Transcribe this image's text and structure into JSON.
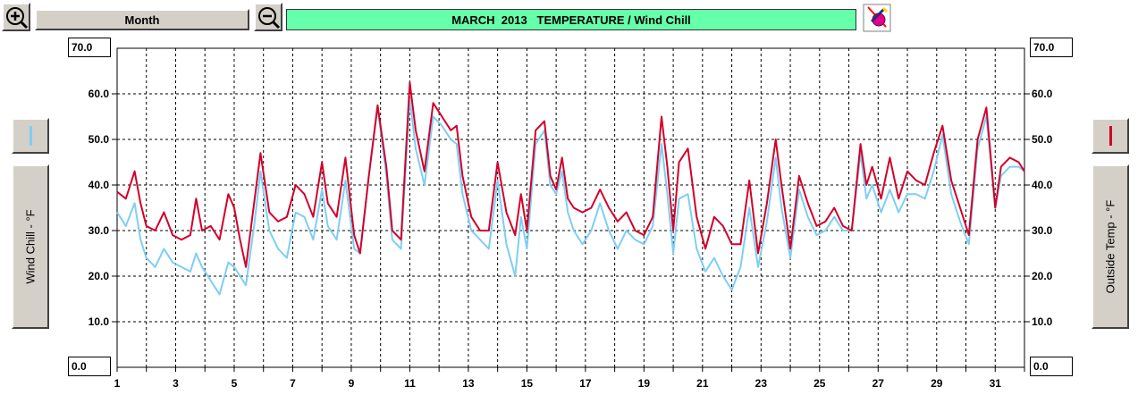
{
  "toolbar": {
    "zoom_in_icon": "zoom-in-magnifier",
    "zoom_out_icon": "zoom-out-magnifier",
    "range_label": "Month",
    "title": "MARCH  2013   TEMPERATURE / Wind Chill",
    "print_icon": "print-pen-icon"
  },
  "left_axis": {
    "title": "Wind Chill - °F",
    "max_box": "70.0",
    "min_box": "0.0",
    "color": "#7ecef4"
  },
  "right_axis": {
    "title": "Outside Temp - °F",
    "max_box": "70.0",
    "min_box": "0.0",
    "color": "#d2002a"
  },
  "chart_data": {
    "type": "line",
    "title": "MARCH  2013   TEMPERATURE / Wind Chill",
    "ylim": [
      0,
      70
    ],
    "xlim": [
      1,
      32
    ],
    "yticks": [
      "10.0",
      "20.0",
      "30.0",
      "40.0",
      "50.0",
      "60.0"
    ],
    "xticks": [
      "1",
      "3",
      "5",
      "7",
      "9",
      "11",
      "13",
      "15",
      "17",
      "19",
      "21",
      "23",
      "25",
      "27",
      "29",
      "31"
    ],
    "grid": true,
    "series": [
      {
        "name": "Outside Temp - °F",
        "color": "#d2002a",
        "x": [
          1,
          1.3,
          1.6,
          1.8,
          2.0,
          2.3,
          2.6,
          2.9,
          3.2,
          3.5,
          3.7,
          3.9,
          4.2,
          4.5,
          4.8,
          5.0,
          5.2,
          5.4,
          5.7,
          5.9,
          6.2,
          6.5,
          6.8,
          7.1,
          7.4,
          7.7,
          8.0,
          8.2,
          8.5,
          8.8,
          9.1,
          9.3,
          9.6,
          9.9,
          10.2,
          10.4,
          10.7,
          11.0,
          11.2,
          11.5,
          11.8,
          12.1,
          12.4,
          12.6,
          12.8,
          13.1,
          13.4,
          13.7,
          14.0,
          14.3,
          14.6,
          14.8,
          15.0,
          15.3,
          15.6,
          15.8,
          16.0,
          16.2,
          16.4,
          16.6,
          16.9,
          17.2,
          17.5,
          17.8,
          18.1,
          18.4,
          18.7,
          19.0,
          19.3,
          19.6,
          19.8,
          20.0,
          20.2,
          20.5,
          20.8,
          21.1,
          21.4,
          21.7,
          22.0,
          22.3,
          22.6,
          22.9,
          23.2,
          23.5,
          23.7,
          24.0,
          24.3,
          24.6,
          24.9,
          25.2,
          25.5,
          25.8,
          26.1,
          26.4,
          26.6,
          26.8,
          27.1,
          27.4,
          27.7,
          28.0,
          28.3,
          28.6,
          28.9,
          29.2,
          29.5,
          29.8,
          30.1,
          30.4,
          30.7,
          31.0,
          31.2,
          31.5,
          31.8,
          32.0
        ],
        "y": [
          38.5,
          37,
          43,
          36,
          31,
          30,
          34,
          29,
          28,
          29,
          37,
          30,
          31,
          28,
          38,
          35,
          28,
          22,
          37,
          47,
          34,
          32,
          33,
          40,
          38,
          33,
          45,
          36,
          33,
          46,
          29,
          25,
          42,
          57.5,
          44,
          30,
          28,
          62.5,
          52,
          43,
          58,
          55,
          52,
          53,
          42,
          33,
          30,
          30,
          45,
          34,
          29,
          38,
          30,
          52,
          54,
          42,
          39,
          46,
          37,
          35,
          34,
          35,
          39,
          35,
          32,
          34,
          30,
          29,
          33,
          55,
          44,
          30,
          45,
          48,
          33,
          26,
          33,
          31,
          27,
          27,
          41,
          25,
          36,
          50,
          40,
          26,
          42,
          36,
          31,
          32,
          35,
          31,
          30,
          49,
          40,
          44,
          37,
          46,
          37,
          43,
          41,
          40,
          47,
          53,
          41,
          35,
          29,
          50,
          57,
          35,
          44,
          46,
          45,
          43
        ]
      },
      {
        "name": "Wind Chill - °F",
        "color": "#7ecef4",
        "x": [
          1,
          1.3,
          1.6,
          1.8,
          2.0,
          2.3,
          2.6,
          2.9,
          3.2,
          3.5,
          3.7,
          3.9,
          4.2,
          4.5,
          4.8,
          5.0,
          5.2,
          5.4,
          5.7,
          5.9,
          6.2,
          6.5,
          6.8,
          7.1,
          7.4,
          7.7,
          8.0,
          8.2,
          8.5,
          8.8,
          9.1,
          9.3,
          9.6,
          9.9,
          10.2,
          10.4,
          10.7,
          11.0,
          11.2,
          11.5,
          11.8,
          12.1,
          12.4,
          12.6,
          12.8,
          13.1,
          13.4,
          13.7,
          14.0,
          14.3,
          14.6,
          14.8,
          15.0,
          15.3,
          15.6,
          15.8,
          16.0,
          16.2,
          16.4,
          16.6,
          16.9,
          17.2,
          17.5,
          17.8,
          18.1,
          18.4,
          18.7,
          19.0,
          19.3,
          19.6,
          19.8,
          20.0,
          20.2,
          20.5,
          20.8,
          21.1,
          21.4,
          21.7,
          22.0,
          22.3,
          22.6,
          22.9,
          23.2,
          23.5,
          23.7,
          24.0,
          24.3,
          24.6,
          24.9,
          25.2,
          25.5,
          25.8,
          26.1,
          26.4,
          26.6,
          26.8,
          27.1,
          27.4,
          27.7,
          28.0,
          28.3,
          28.6,
          28.9,
          29.2,
          29.5,
          29.8,
          30.1,
          30.4,
          30.7,
          31.0,
          31.2,
          31.5,
          31.8,
          32.0
        ],
        "y": [
          34,
          31,
          36,
          28,
          24,
          22,
          26,
          23,
          22,
          21,
          25,
          22,
          19,
          16,
          23,
          22,
          20,
          18,
          32,
          43,
          30,
          26,
          24,
          34,
          33,
          28,
          39,
          31,
          28,
          41,
          26,
          25,
          42,
          57,
          42,
          28,
          26,
          59,
          48,
          40,
          55,
          53,
          50,
          49,
          38,
          30,
          28,
          26,
          41,
          27,
          20,
          33,
          26,
          49,
          52,
          40,
          38,
          43,
          34,
          30,
          27,
          30,
          36,
          30,
          26,
          30,
          28,
          27,
          31,
          49,
          38,
          25,
          37,
          38,
          26,
          21,
          24,
          20,
          17,
          22,
          35,
          22,
          32,
          46,
          35,
          24,
          39,
          33,
          29,
          30,
          33,
          30,
          30,
          47,
          37,
          40,
          34,
          39,
          34,
          38,
          38,
          37,
          43,
          51,
          38,
          32,
          27,
          48,
          55,
          35,
          42,
          44,
          44,
          43
        ]
      }
    ]
  }
}
